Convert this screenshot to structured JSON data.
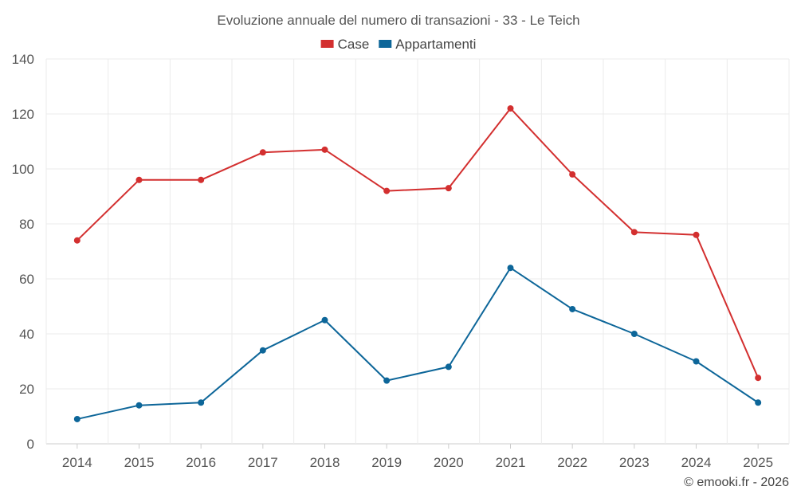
{
  "chart_data": {
    "type": "line",
    "title": "Evoluzione annuale del numero di transazioni - 33 - Le Teich",
    "categories": [
      "2014",
      "2015",
      "2016",
      "2017",
      "2018",
      "2019",
      "2020",
      "2021",
      "2022",
      "2023",
      "2024",
      "2025"
    ],
    "series": [
      {
        "name": "Case",
        "color": "#d32f2f",
        "values": [
          74,
          96,
          96,
          106,
          107,
          92,
          93,
          122,
          98,
          77,
          76,
          24
        ]
      },
      {
        "name": "Appartamenti",
        "color": "#0d6699",
        "values": [
          9,
          14,
          15,
          34,
          45,
          23,
          28,
          64,
          49,
          40,
          30,
          15
        ]
      }
    ],
    "ylim": [
      0,
      140
    ],
    "yticks": [
      0,
      20,
      40,
      60,
      80,
      100,
      120,
      140
    ],
    "grid": true,
    "legend_position": "top-center",
    "credit": "© emooki.fr - 2026"
  }
}
